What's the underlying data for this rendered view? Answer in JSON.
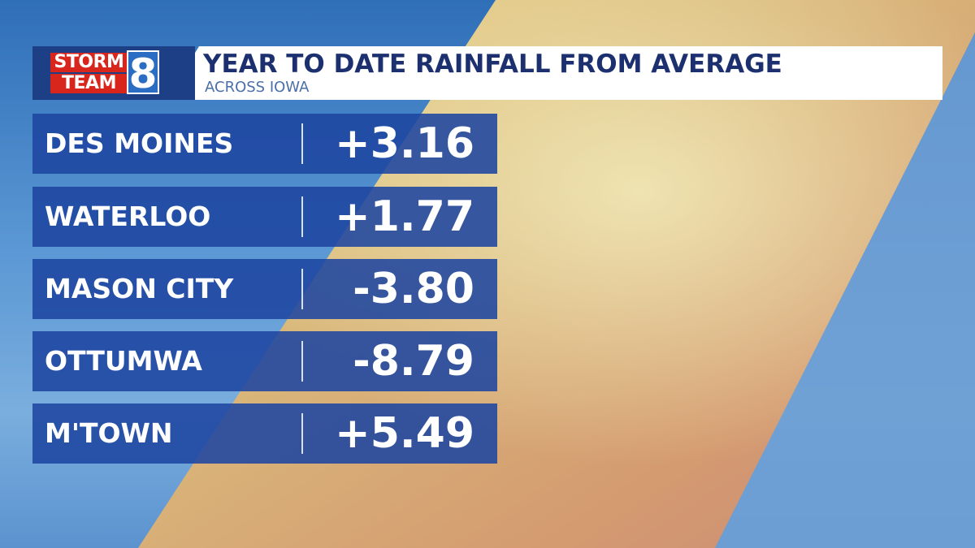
{
  "header": {
    "logo_line1": "STORM",
    "logo_line2": "TEAM",
    "logo_number": "8",
    "title": "YEAR TO DATE RAINFALL FROM AVERAGE",
    "subtitle": "ACROSS IOWA"
  },
  "table": {
    "rows": [
      [
        "DES MOINES",
        "+3.16"
      ],
      [
        "WATERLOO",
        "+1.77"
      ],
      [
        "MASON CITY",
        "-3.80"
      ],
      [
        "OTTUMWA",
        "-8.79"
      ],
      [
        "M'TOWN",
        "+5.49"
      ]
    ]
  }
}
